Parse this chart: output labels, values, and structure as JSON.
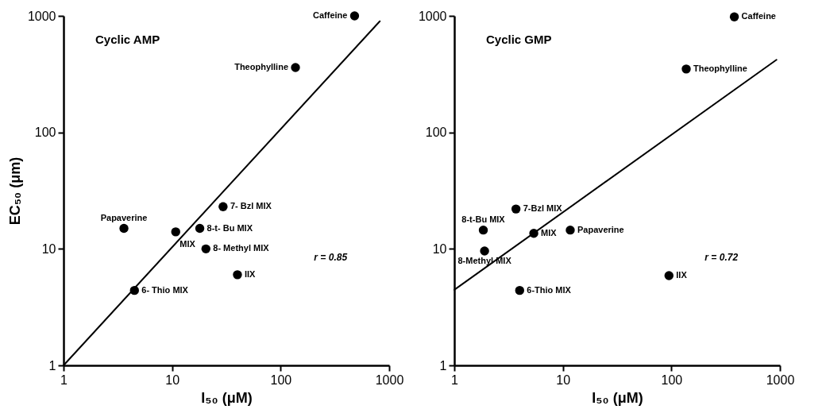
{
  "chart_data": [
    {
      "type": "scatter",
      "title": "Cyclic AMP",
      "xlabel": "I₅₀ (μM)",
      "ylabel": "EC₅₀ (μm)",
      "log": "xy",
      "xlim": [
        1,
        1000
      ],
      "ylim": [
        1,
        1000
      ],
      "xticks": [
        1,
        10,
        100,
        1000
      ],
      "yticks": [
        1,
        10,
        100,
        1000
      ],
      "marker": "circle",
      "annotations": [
        "r = 0.85"
      ],
      "series": [
        {
          "name": "Caffeine",
          "color": "#000000",
          "x": [
            480
          ],
          "values": [
            1000
          ]
        },
        {
          "name": "Theophylline",
          "color": "#000000",
          "x": [
            137
          ],
          "values": [
            360
          ]
        },
        {
          "name": "7- Bzl MIX",
          "color": "#000000",
          "x": [
            29.5
          ],
          "values": [
            23
          ]
        },
        {
          "name": "Papaverine",
          "color": "#000000",
          "x": [
            3.6
          ],
          "values": [
            15
          ]
        },
        {
          "name": "MIX",
          "color": "#000000",
          "x": [
            10.8
          ],
          "values": [
            14
          ]
        },
        {
          "name": "8-t- Bu MIX",
          "color": "#000000",
          "x": [
            18
          ],
          "values": [
            15
          ]
        },
        {
          "name": "8- Methyl MIX",
          "color": "#000000",
          "x": [
            20.5
          ],
          "values": [
            10
          ]
        },
        {
          "name": "IIX",
          "color": "#000000",
          "x": [
            40
          ],
          "values": [
            6
          ]
        },
        {
          "name": "6- Thio MIX",
          "color": "#000000",
          "x": [
            4.5
          ],
          "values": [
            4.4
          ]
        },
        {
          "type": "line",
          "color": "#000000",
          "marker": "none",
          "x": [
            1,
            820
          ],
          "values": [
            1,
            900
          ]
        }
      ]
    },
    {
      "type": "scatter",
      "title": "Cyclic GMP",
      "xlabel": "I₅₀ (μM)",
      "log": "xy",
      "xlim": [
        1,
        1000
      ],
      "ylim": [
        1,
        1000
      ],
      "xticks": [
        1,
        10,
        100,
        1000
      ],
      "yticks": [
        1,
        10,
        100,
        1000
      ],
      "marker": "circle",
      "annotations": [
        "r = 0.72"
      ],
      "series": [
        {
          "name": "Caffeine",
          "color": "#000000",
          "x": [
            380
          ],
          "values": [
            980
          ]
        },
        {
          "name": "Theophylline",
          "color": "#000000",
          "x": [
            137
          ],
          "values": [
            350
          ]
        },
        {
          "name": "7-Bzl MIX",
          "color": "#000000",
          "x": [
            3.7
          ],
          "values": [
            22
          ]
        },
        {
          "name": "8-t-Bu MIX",
          "color": "#000000",
          "x": [
            1.85
          ],
          "values": [
            14.5
          ]
        },
        {
          "name": "8-Methyl MIX",
          "color": "#000000",
          "x": [
            1.9
          ],
          "values": [
            9.6
          ]
        },
        {
          "name": "MIX",
          "color": "#000000",
          "x": [
            5.4
          ],
          "values": [
            13.6
          ]
        },
        {
          "name": "Papaverine",
          "color": "#000000",
          "x": [
            11.7
          ],
          "values": [
            14.5
          ]
        },
        {
          "name": "IIX",
          "color": "#000000",
          "x": [
            95
          ],
          "values": [
            5.9
          ]
        },
        {
          "name": "6-Thio MIX",
          "color": "#000000",
          "x": [
            4
          ],
          "values": [
            4.4
          ]
        },
        {
          "type": "line",
          "color": "#000000",
          "marker": "none",
          "x": [
            1,
            930
          ],
          "values": [
            4.45,
            420
          ]
        }
      ]
    }
  ]
}
